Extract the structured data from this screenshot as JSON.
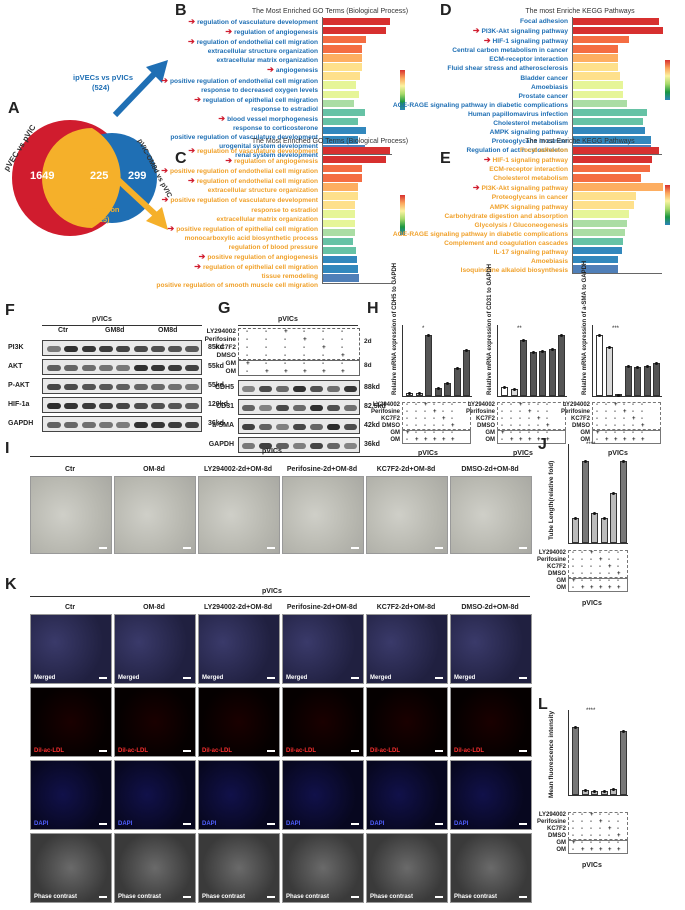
{
  "panels": {
    "A": "A",
    "B": "B",
    "C": "C",
    "D": "D",
    "E": "E",
    "F": "F",
    "G": "G",
    "H": "H",
    "I": "I",
    "J": "J",
    "K": "K",
    "L": "L"
  },
  "venn": {
    "left_title": "pVEC vs pVIC",
    "right_title": "pVIC-OM8d vs pVIC",
    "left_only": "1649",
    "overlap": "225",
    "right_only": "299",
    "arrow_up_label": "ipVECs vs pVICs",
    "arrow_up_count": "(524)",
    "arrow_down_label": "intersection",
    "arrow_down_count": "(225)",
    "left_color": "#d01c2e",
    "right_color": "#1f6fb4",
    "overlap_color": "#f5b02a"
  },
  "go_b": {
    "title": "The Most Enriched GO Terms (Biological Process)",
    "terms": [
      "regulation of vasculature development",
      "regulation of angiogenesis",
      "regulation of endothelial cell migration",
      "extracellular structure organization",
      "extracellular matrix organization",
      "angiogenesis",
      "positive regulation of endothelial cell migration",
      "response to decreased oxygen levels",
      "regulation of epithelial cell migration",
      "response to estradiol",
      "blood vessel morphogenesis",
      "response to corticosterone",
      "positive regulation of vasculature development",
      "urogenital system development",
      "renal system development"
    ],
    "values": [
      0.95,
      0.9,
      0.62,
      0.56,
      0.55,
      0.55,
      0.53,
      0.47,
      0.51,
      0.44,
      0.6,
      0.5,
      0.62,
      0.5,
      0.6
    ],
    "arrows": [
      0,
      1,
      2,
      5,
      6,
      8,
      10
    ],
    "xlabel": "-log10(p.adjust)"
  },
  "go_c": {
    "title": "The Most Enriched GO Terms (Biological Process)",
    "terms": [
      "regulation of vasculature development",
      "regulation of angiogenesis",
      "positive regulation of endothelial cell migration",
      "regulation of endothelial cell migration",
      "extracellular structure organization",
      "positive regulation of vasculature development",
      "response to estradiol",
      "extracellular matrix organization",
      "positive regulation of epithelial cell migration",
      "monocarboxylic acid biosynthetic process",
      "regulation of blood pressure",
      "positive regulation of angiogenesis",
      "regulation of epithelial cell migration",
      "tissue remodeling",
      "positive regulation of smooth muscle cell migration"
    ],
    "values": [
      0.95,
      0.9,
      0.55,
      0.55,
      0.5,
      0.5,
      0.46,
      0.45,
      0.45,
      0.45,
      0.43,
      0.47,
      0.48,
      0.5,
      0.52
    ],
    "arrows": [
      0,
      1,
      2,
      3,
      5,
      8,
      11,
      12
    ],
    "xlabel": "-log10(p.adjust)"
  },
  "kegg_d": {
    "title": "The most Enriche KEGG Pathways",
    "terms": [
      "Focal adhesion",
      "PI3K-Akt signaling pathway",
      "HIF-1 signaling pathway",
      "Central carbon metabolism in cancer",
      "ECM-receptor interaction",
      "Fluid shear stress and atherosclerosis",
      "Bladder cancer",
      "Amoebiasis",
      "Prostate cancer",
      "AGE-RAGE signaling pathway in diabetic complications",
      "Human papillomavirus infection",
      "Cholesterol metabolism",
      "AMPK signaling pathway",
      "Proteoglycans in cancer",
      "Regulation of actin cytoskeleton"
    ],
    "values": [
      0.95,
      1.0,
      0.62,
      0.5,
      0.5,
      0.5,
      0.52,
      0.55,
      0.55,
      0.6,
      0.82,
      0.78,
      0.8,
      0.87,
      0.87
    ],
    "arrows": [
      1,
      2
    ],
    "xlabel": "-log10(p.adjust)"
  },
  "kegg_e": {
    "title": "The most Enriche KEGG Pathways",
    "terms": [
      "Focal adhesion",
      "HIF-1 signaling pathway",
      "ECM-receptor interaction",
      "Cholesterol metabolism",
      "PI3K-Akt signaling pathway",
      "Proteoglycans in cancer",
      "AMPK signaling pathway",
      "Carbohydrate digestion and absorption",
      "Glycolysis / Gluconeogenesis",
      "AGE-RAGE signaling pathway in diabetic complications",
      "Complement and coagulation cascades",
      "IL-17 signaling pathway",
      "Amoebiasis",
      "Isoquinoline alkaloid biosynthesis"
    ],
    "values": [
      0.95,
      0.88,
      0.85,
      0.75,
      1.0,
      0.7,
      0.68,
      0.62,
      0.6,
      0.58,
      0.56,
      0.54,
      0.5,
      0.5
    ],
    "arrows": [
      1,
      4
    ],
    "xlabel": "-log10(p.adjust)"
  },
  "western_f": {
    "group": "pVICs",
    "cols": [
      "Ctr",
      "GM8d",
      "OM8d"
    ],
    "rows": [
      {
        "name": "PI3K",
        "kd": "85kd"
      },
      {
        "name": "AKT",
        "kd": "55kd"
      },
      {
        "name": "P-AKT",
        "kd": "55kd"
      },
      {
        "name": "HIF-1a",
        "kd": "120kd"
      },
      {
        "name": "GAPDH",
        "kd": "36kd"
      }
    ]
  },
  "western_g": {
    "group": "pVICs",
    "treatments": [
      "LY294002",
      "Perifosine",
      "KC7F2",
      "DMSO"
    ],
    "media": [
      "GM",
      "OM"
    ],
    "durations": [
      "2d",
      "8d"
    ],
    "rows": [
      {
        "name": "CDH5",
        "kd": "88kd"
      },
      {
        "name": "CD31",
        "kd": "82.5kd"
      },
      {
        "name": "a-SMA",
        "kd": "42kd"
      },
      {
        "name": "GAPDH",
        "kd": "36kd"
      }
    ]
  },
  "mrna_h": {
    "charts": [
      {
        "ylabel": "Relative mRNA expression of CDH5 to GAPDH",
        "values": [
          0.5,
          0.6,
          12,
          1.5,
          2.5,
          5.5,
          9
        ]
      },
      {
        "ylabel": "Relative mRNA expression of CD31 to GAPDH",
        "values": [
          1,
          0.7,
          6,
          4.7,
          4.8,
          5,
          6.5
        ]
      },
      {
        "ylabel": "Relative mRNA expression of a-SMA to GAPDH",
        "values": [
          1,
          0.8,
          0.02,
          0.5,
          0.48,
          0.5,
          0.55
        ]
      }
    ],
    "group": "pVICs",
    "stars": [
      "*",
      "**",
      "***",
      "****"
    ]
  },
  "tube_i": {
    "group": "pVICs",
    "conditions": [
      "Ctr",
      "OM-8d",
      "LY294002-2d+OM-8d",
      "Perifosine-2d+OM-8d",
      "KC7F2-2d+OM-8d",
      "DMSO-2d+OM-8d"
    ]
  },
  "tube_j": {
    "ylabel": "Tube Length(relative fold)",
    "values": [
      1,
      3.3,
      1.2,
      1.0,
      2.0,
      3.3
    ],
    "ylim": [
      0,
      4
    ],
    "group": "pVICs",
    "stars": "****"
  },
  "fluor_k": {
    "group": "pVICs",
    "conditions": [
      "Ctr",
      "OM-8d",
      "LY294002-2d+OM-8d",
      "Perifosine-2d+OM-8d",
      "KC7F2-2d+OM-8d",
      "DMSO-2d+OM-8d"
    ],
    "rows": [
      "Merged",
      "Dil-ac-LDL",
      "DAPI",
      "Phase contrast"
    ]
  },
  "fluor_l": {
    "ylabel": "Mean fluorescence intensity",
    "values": [
      5.5,
      0.4,
      0.3,
      0.3,
      0.5,
      5.2
    ],
    "group": "pVICs",
    "stars": "****"
  },
  "table_rows": [
    {
      "label": "LY294002",
      "marks": [
        "-",
        "-",
        "+",
        "-",
        "-",
        "-"
      ]
    },
    {
      "label": "Perifosine",
      "marks": [
        "-",
        "-",
        "-",
        "+",
        "-",
        "-"
      ]
    },
    {
      "label": "KC7F2",
      "marks": [
        "-",
        "-",
        "-",
        "-",
        "+",
        "-"
      ]
    },
    {
      "label": "DMSO",
      "marks": [
        "-",
        "-",
        "-",
        "-",
        "-",
        "+"
      ]
    },
    {
      "label": "GM",
      "marks": [
        "+",
        "-",
        "-",
        "-",
        "-",
        "-"
      ]
    },
    {
      "label": "OM",
      "marks": [
        "-",
        "+",
        "+",
        "+",
        "+",
        "+"
      ]
    }
  ]
}
